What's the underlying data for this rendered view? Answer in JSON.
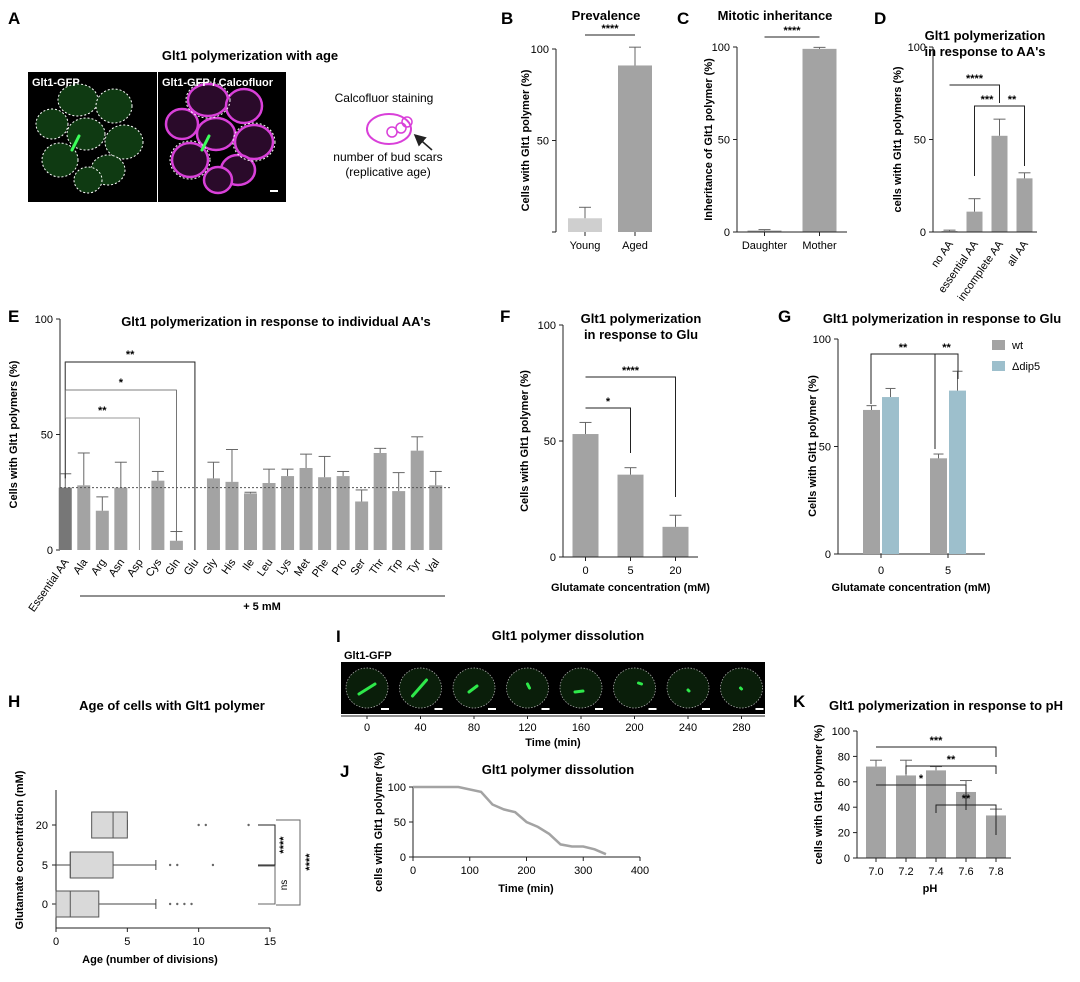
{
  "colors": {
    "bar": "#a3a3a3",
    "bar_dark": "#777777",
    "bar_light": "#cfcfcf",
    "blue": "#9dbfcc",
    "green": "#2ee84a",
    "magenta": "#d940d9",
    "axis": "#222222",
    "box": "#d9d9d9"
  },
  "panels": {
    "A": {
      "letter": "A",
      "title": "Glt1 polymerization with age",
      "label_gfp": "Glt1-GFP",
      "label_merge": "Glt1-GFP / Calcofluor",
      "schematic_title": "Calcofluor staining",
      "schematic_caption_1": "number of bud scars",
      "schematic_caption_2": "(replicative age)"
    },
    "B": {
      "letter": "B"
    },
    "C": {
      "letter": "C"
    },
    "D": {
      "letter": "D"
    },
    "E": {
      "letter": "E"
    },
    "F": {
      "letter": "F"
    },
    "G": {
      "letter": "G"
    },
    "H": {
      "letter": "H"
    },
    "I": {
      "letter": "I",
      "title": "Glt1 polymer dissolution",
      "label": "Glt1-GFP",
      "times": [
        "0",
        "40",
        "80",
        "120",
        "160",
        "200",
        "240",
        "280"
      ],
      "xlabel": "Time (min)"
    },
    "J": {
      "letter": "J"
    },
    "K": {
      "letter": "K"
    }
  },
  "chart_data": [
    {
      "id": "B",
      "type": "bar",
      "title": "Prevalence",
      "ylabel": "Cells with Glt1 polymer (%)",
      "categories": [
        "Young",
        "Aged"
      ],
      "values": [
        7.5,
        91
      ],
      "errors": [
        6,
        10
      ],
      "ylim": [
        0,
        100
      ],
      "yticks": [
        0,
        50,
        100
      ],
      "ticklabels": [
        "",
        "50",
        "100"
      ],
      "significance": [
        "****"
      ]
    },
    {
      "id": "C",
      "type": "bar",
      "title": "Mitotic inheritance",
      "ylabel": "Inheritance of Glt1 polymer (%)",
      "categories": [
        "Daughter",
        "Mother"
      ],
      "values": [
        0.8,
        99
      ],
      "errors": [
        0.5,
        0.8
      ],
      "ylim": [
        0,
        100
      ],
      "yticks": [
        0,
        50,
        100
      ],
      "ticklabels": [
        "0",
        "50",
        "100"
      ],
      "significance": [
        "****"
      ]
    },
    {
      "id": "D",
      "type": "bar",
      "title": "Glt1 polymerization",
      "title2": "in response to AA's",
      "ylabel": "cells with Glt1 polymers (%)",
      "categories": [
        "no AA",
        "essential AA",
        "incomplete AA",
        "all AA"
      ],
      "values": [
        0.5,
        11,
        52,
        29
      ],
      "errors": [
        0.5,
        7,
        9,
        3
      ],
      "ylim": [
        0,
        100
      ],
      "yticks": [
        0,
        50,
        100
      ],
      "ticklabels": [
        "0",
        "50",
        "100"
      ],
      "significance": [
        "****",
        "***",
        "**"
      ]
    },
    {
      "id": "E",
      "type": "bar",
      "title": "Glt1 polymerization in response to individual AA's",
      "ylabel": "Cells with Glt1 polymers (%)",
      "categories": [
        "Essential AA",
        "Ala",
        "Arg",
        "Asn",
        "Asp",
        "Cys",
        "Gln",
        "Glu",
        "Gly",
        "His",
        "Ile",
        "Leu",
        "Lys",
        "Met",
        "Phe",
        "Pro",
        "Ser",
        "Thr",
        "Trp",
        "Tyr",
        "Val"
      ],
      "values": [
        27,
        28,
        17,
        27,
        0,
        30,
        4,
        0,
        31,
        29.5,
        24.5,
        29,
        32,
        35.5,
        31.5,
        32,
        21,
        42,
        25.5,
        43,
        28
      ],
      "errors": [
        6,
        14,
        6,
        11,
        0,
        4,
        4,
        0,
        7,
        14,
        0.5,
        6,
        3,
        6,
        9,
        2,
        5,
        2,
        8,
        6,
        6
      ],
      "ylim": [
        0,
        100
      ],
      "yticks": [
        0,
        50,
        100
      ],
      "ticklabels": [
        "0",
        "50",
        "100"
      ],
      "reference_line": 27,
      "group_label": "+ 5 mM",
      "significance": [
        "**",
        "*",
        "**"
      ]
    },
    {
      "id": "F",
      "type": "bar",
      "title": "Glt1 polymerization",
      "title2": "in response to Glu",
      "ylabel": "Cells with Glt1 polymer (%)",
      "xlabel": "Glutamate concentration (mM)",
      "categories": [
        "0",
        "5",
        "20"
      ],
      "values": [
        53,
        35.5,
        13
      ],
      "errors": [
        5,
        3,
        5
      ],
      "ylim": [
        0,
        100
      ],
      "yticks": [
        0,
        50,
        100
      ],
      "ticklabels": [
        "0",
        "50",
        "100"
      ],
      "significance": [
        "*",
        "****"
      ]
    },
    {
      "id": "G",
      "type": "bar",
      "title": "Glt1 polymerization in response to Glu",
      "ylabel": "Cells with Glt1 polymer (%)",
      "xlabel": "Glutamate concentration (mM)",
      "categories": [
        "0",
        "5"
      ],
      "series": [
        {
          "name": "wt",
          "values": [
            67,
            44.5
          ],
          "errors": [
            2,
            2
          ]
        },
        {
          "name": "Δdip5",
          "values": [
            73,
            76
          ],
          "errors": [
            4,
            9
          ]
        }
      ],
      "ylim": [
        0,
        100
      ],
      "yticks": [
        0,
        50,
        100
      ],
      "ticklabels": [
        "0",
        "50",
        "100"
      ],
      "significance": [
        "**",
        "**"
      ]
    },
    {
      "id": "H",
      "type": "box",
      "title": "Age of cells with Glt1 polymer",
      "ylabel": "Glutamate concentration (mM)",
      "xlabel": "Age (number of divisions)",
      "categories": [
        "0",
        "5",
        "20"
      ],
      "boxes": [
        {
          "q1": 0,
          "median": 1,
          "q3": 3,
          "whisker_low": 0,
          "whisker_high": 7
        },
        {
          "q1": 1,
          "median": 1,
          "q3": 4,
          "whisker_low": 0,
          "whisker_high": 7
        },
        {
          "q1": 2.5,
          "median": 4,
          "q3": 5,
          "whisker_low": 2.5,
          "whisker_high": 5
        }
      ],
      "xlim": [
        0,
        15
      ],
      "xticks": [
        0,
        5,
        10,
        15
      ],
      "ticklabels": [
        "0",
        "5",
        "10",
        "15"
      ],
      "significance": [
        "****",
        "****",
        "ns"
      ]
    },
    {
      "id": "J",
      "type": "line",
      "title": "Glt1 polymer dissolution",
      "ylabel": "cells with Glt1 polymer (%)",
      "xlabel": "Time (min)",
      "x": [
        0,
        80,
        120,
        140,
        160,
        180,
        200,
        220,
        240,
        260,
        280,
        300,
        320,
        340
      ],
      "y": [
        100,
        100,
        93,
        75,
        68,
        64,
        50,
        43,
        33,
        18,
        15,
        15,
        11,
        4
      ],
      "xlim": [
        0,
        400
      ],
      "ylim": [
        0,
        100
      ],
      "xticks": [
        0,
        100,
        200,
        300,
        400
      ],
      "yticks": [
        0,
        50,
        100
      ]
    },
    {
      "id": "K",
      "type": "bar",
      "title": "Glt1 polymerization in response to pH",
      "ylabel": "cells with Glt1 polymer (%)",
      "xlabel": "pH",
      "categories": [
        "7.0",
        "7.2",
        "7.4",
        "7.6",
        "7.8"
      ],
      "values": [
        72,
        65,
        69,
        52,
        33.5
      ],
      "errors": [
        5,
        12,
        3,
        9,
        5
      ],
      "ylim": [
        0,
        100
      ],
      "yticks": [
        0,
        20,
        40,
        60,
        80,
        100
      ],
      "ticklabels": [
        "0",
        "20",
        "40",
        "60",
        "80",
        "100"
      ],
      "significance": [
        "***",
        "**",
        "*",
        "**"
      ]
    }
  ]
}
